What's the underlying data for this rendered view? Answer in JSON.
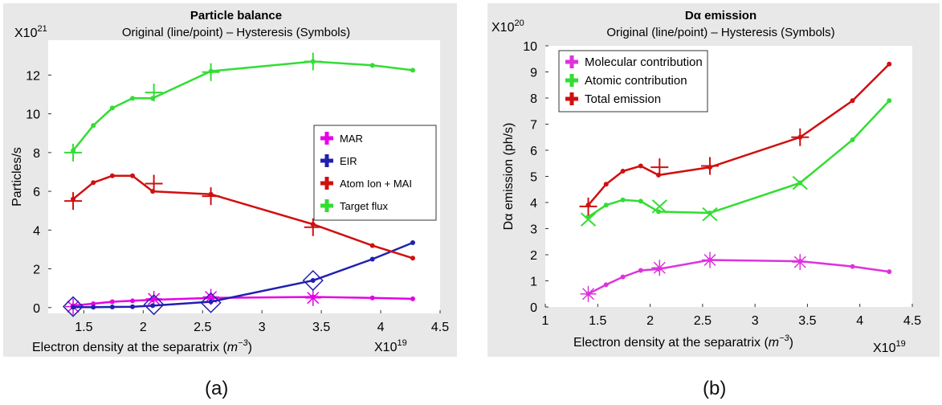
{
  "captions": [
    "(a)",
    "(b)"
  ],
  "chart_data": [
    {
      "type": "line",
      "title": "Particle balance",
      "subtitle": "Original (line/point) – Hysteresis (Symbols)",
      "xlabel": "Electron density at the separatrix (m^-3)",
      "xlabel_text": "Electron density at the separatrix (",
      "xlabel_unit_base": "m",
      "xlabel_unit_exp": "−3",
      "xlabel_close": ")",
      "x_multiplier_base": "X10",
      "x_multiplier_exp": "19",
      "ylabel": "Particles/s",
      "y_multiplier_base": "X10",
      "y_multiplier_exp": "21",
      "xlim": [
        1.2,
        4.5
      ],
      "ylim": [
        -0.3,
        13.8
      ],
      "xticks": [
        1.5,
        2,
        2.5,
        3,
        3.5,
        4,
        4.5
      ],
      "xtick_labels": [
        "1.5",
        "2",
        "2.5",
        "3",
        "3.5",
        "4",
        "4.5"
      ],
      "yticks": [
        0,
        2,
        4,
        6,
        8,
        10,
        12
      ],
      "ytick_labels": [
        "0",
        "2",
        "4",
        "6",
        "8",
        "10",
        "12"
      ],
      "grid": false,
      "legend_position": "right-middle",
      "series": [
        {
          "name": "MAR",
          "color": "#e600e6",
          "x": [
            1.41,
            1.58,
            1.74,
            1.91,
            2.08,
            2.57,
            3.43,
            3.93,
            4.27
          ],
          "y": [
            0.1,
            0.2,
            0.3,
            0.35,
            0.4,
            0.5,
            0.55,
            0.5,
            0.45
          ],
          "hysteresis": {
            "marker": "star",
            "x": [
              1.41,
              2.09,
              2.57,
              3.43
            ],
            "y": [
              0.05,
              0.45,
              0.55,
              0.5
            ]
          }
        },
        {
          "name": "EIR",
          "color": "#2020b0",
          "x": [
            1.41,
            1.58,
            1.74,
            1.91,
            2.08,
            2.57,
            3.43,
            3.93,
            4.27
          ],
          "y": [
            0.02,
            0.02,
            0.03,
            0.04,
            0.1,
            0.3,
            1.4,
            2.5,
            3.35
          ],
          "hysteresis": {
            "marker": "diamond",
            "x": [
              1.41,
              2.09,
              2.57,
              3.43
            ],
            "y": [
              0.05,
              0.15,
              0.25,
              1.4
            ]
          }
        },
        {
          "name": "Atom Ion + MAI",
          "color": "#d01010",
          "x": [
            1.41,
            1.58,
            1.74,
            1.91,
            2.08,
            2.57,
            3.43,
            3.93,
            4.27
          ],
          "y": [
            5.6,
            6.45,
            6.8,
            6.8,
            6.0,
            5.85,
            4.3,
            3.2,
            2.55
          ],
          "hysteresis": {
            "marker": "plus",
            "x": [
              1.41,
              2.09,
              2.57,
              3.43
            ],
            "y": [
              5.5,
              6.4,
              5.75,
              4.15
            ]
          }
        },
        {
          "name": "Target flux",
          "color": "#33dd33",
          "x": [
            1.41,
            1.58,
            1.74,
            1.91,
            2.08,
            2.57,
            3.43,
            3.93,
            4.27
          ],
          "y": [
            8.1,
            9.4,
            10.3,
            10.8,
            10.8,
            12.2,
            12.7,
            12.5,
            12.25
          ],
          "hysteresis": {
            "marker": "plus",
            "x": [
              1.41,
              2.09,
              2.57,
              3.43
            ],
            "y": [
              8.0,
              11.1,
              12.15,
              12.7
            ]
          }
        }
      ]
    },
    {
      "type": "line",
      "title": "Dα emission",
      "subtitle": "Original (line/point) – Hysteresis (Symbols)",
      "xlabel": "Electron density at the separatrix (m^-3)",
      "xlabel_text": "Electron density at the separatrix (",
      "xlabel_unit_base": "m",
      "xlabel_unit_exp": "−3",
      "xlabel_close": ")",
      "x_multiplier_base": "X10",
      "x_multiplier_exp": "19",
      "ylabel": "Dα emission (ph/s)",
      "y_multiplier_base": "X10",
      "y_multiplier_exp": "20",
      "xlim": [
        1.0,
        4.5
      ],
      "ylim": [
        0,
        10
      ],
      "xticks": [
        1,
        1.5,
        2,
        2.5,
        3,
        3.5,
        4,
        4.5
      ],
      "xtick_labels": [
        "1",
        "1.5",
        "2",
        "2.5",
        "3",
        "3.5",
        "4",
        "4.5"
      ],
      "yticks": [
        0,
        1,
        2,
        3,
        4,
        5,
        6,
        7,
        8,
        9,
        10
      ],
      "ytick_labels": [
        "0",
        "1",
        "2",
        "3",
        "4",
        "5",
        "6",
        "7",
        "8",
        "9",
        "10"
      ],
      "grid": false,
      "legend_position": "top-left",
      "series": [
        {
          "name": "Molecular contribution",
          "color": "#dd33dd",
          "x": [
            1.41,
            1.58,
            1.74,
            1.91,
            2.08,
            2.57,
            3.43,
            3.93,
            4.28
          ],
          "y": [
            0.5,
            0.85,
            1.15,
            1.4,
            1.45,
            1.8,
            1.75,
            1.55,
            1.35
          ],
          "hysteresis": {
            "marker": "star",
            "x": [
              1.41,
              2.09,
              2.57,
              3.43
            ],
            "y": [
              0.5,
              1.5,
              1.8,
              1.72
            ]
          }
        },
        {
          "name": "Atomic contribution",
          "color": "#33dd33",
          "x": [
            1.41,
            1.58,
            1.74,
            1.91,
            2.08,
            2.57,
            3.43,
            3.93,
            4.28
          ],
          "y": [
            3.45,
            3.9,
            4.1,
            4.05,
            3.65,
            3.6,
            4.75,
            6.4,
            7.9
          ],
          "hysteresis": {
            "marker": "cross",
            "x": [
              1.41,
              2.09,
              2.57,
              3.43
            ],
            "y": [
              3.35,
              3.85,
              3.55,
              4.75
            ]
          }
        },
        {
          "name": "Total emission",
          "color": "#d01010",
          "x": [
            1.41,
            1.58,
            1.74,
            1.91,
            2.08,
            2.57,
            3.43,
            3.93,
            4.28
          ],
          "y": [
            3.9,
            4.7,
            5.2,
            5.4,
            5.05,
            5.35,
            6.5,
            7.9,
            9.3
          ],
          "hysteresis": {
            "marker": "plus",
            "x": [
              1.41,
              2.09,
              2.57,
              3.43
            ],
            "y": [
              3.85,
              5.35,
              5.4,
              6.5
            ]
          }
        }
      ]
    }
  ]
}
